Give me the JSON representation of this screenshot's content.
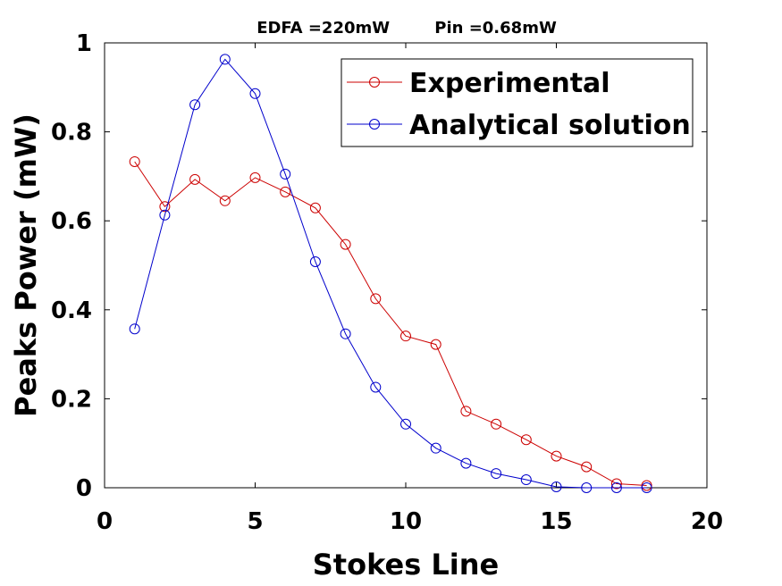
{
  "chart_data": {
    "type": "line",
    "title": "EDFA =220mW        Pin =0.68mW",
    "xlabel": "Stokes Line",
    "ylabel": "Peaks Power (mW)",
    "xlim": [
      0,
      20
    ],
    "ylim": [
      0,
      1
    ],
    "xticks": [
      0,
      5,
      10,
      15,
      20
    ],
    "yticks": [
      0,
      0.2,
      0.4,
      0.6,
      0.8,
      1
    ],
    "ytick_labels": [
      "0",
      "0.2",
      "0.4",
      "0.6",
      "0.8",
      "1"
    ],
    "grid": false,
    "legend_position": "top-right",
    "series": [
      {
        "name": "Experimental",
        "color": "#cc0000",
        "marker": "circle",
        "x": [
          1,
          2,
          3,
          4,
          5,
          6,
          7,
          8,
          9,
          10,
          11,
          12,
          13,
          14,
          15,
          16,
          17,
          18
        ],
        "y": [
          0.733,
          0.632,
          0.693,
          0.645,
          0.697,
          0.665,
          0.629,
          0.547,
          0.425,
          0.341,
          0.322,
          0.172,
          0.143,
          0.108,
          0.071,
          0.047,
          0.009,
          0.005
        ]
      },
      {
        "name": "Analytical solution",
        "color": "#0000cc",
        "marker": "circle",
        "x": [
          1,
          2,
          3,
          4,
          5,
          6,
          7,
          8,
          9,
          10,
          11,
          12,
          13,
          14,
          15,
          16,
          17,
          18
        ],
        "y": [
          0.357,
          0.613,
          0.861,
          0.963,
          0.886,
          0.705,
          0.508,
          0.346,
          0.226,
          0.143,
          0.089,
          0.055,
          0.032,
          0.018,
          0.002,
          0.0,
          0.0,
          0.0
        ]
      }
    ]
  }
}
